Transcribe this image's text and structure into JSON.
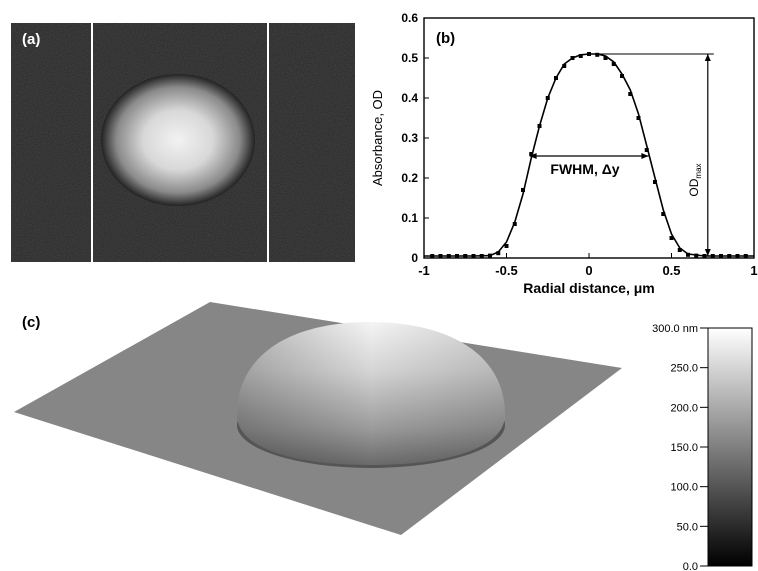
{
  "panels": {
    "a": {
      "label": "(a)"
    },
    "b": {
      "label": "(b)"
    },
    "c": {
      "label": "(c)"
    }
  },
  "chart_data": [
    {
      "type": "image",
      "panel": "(a)",
      "description_source": "grayscale micrograph, bright round spot between two vertical white lines"
    },
    {
      "type": "line",
      "panel": "(b)",
      "xlabel": "Radial distance, μm",
      "ylabel": "Absorbance, OD",
      "xlim": [
        -1,
        1
      ],
      "ylim": [
        0,
        0.6
      ],
      "xticks": [
        -1,
        -0.5,
        0,
        0.5,
        1
      ],
      "xtick_labels": [
        "-1",
        "-0.5",
        "0",
        "0.5",
        "1"
      ],
      "yticks": [
        0,
        0.1,
        0.2,
        0.3,
        0.4,
        0.5,
        0.6
      ],
      "ytick_labels": [
        "0",
        "0.1",
        "0.2",
        "0.3",
        "0.4",
        "0.5",
        "0.6"
      ],
      "grid": false,
      "series": [
        {
          "style": "solid-line",
          "x": [
            -1,
            -0.9,
            -0.8,
            -0.7,
            -0.6,
            -0.55,
            -0.5,
            -0.45,
            -0.4,
            -0.35,
            -0.3,
            -0.25,
            -0.2,
            -0.15,
            -0.1,
            -0.05,
            0,
            0.05,
            0.1,
            0.15,
            0.2,
            0.25,
            0.3,
            0.35,
            0.4,
            0.45,
            0.5,
            0.55,
            0.6,
            0.7,
            0.8,
            0.9,
            1
          ],
          "y": [
            0.005,
            0.005,
            0.005,
            0.005,
            0.006,
            0.015,
            0.04,
            0.09,
            0.16,
            0.25,
            0.33,
            0.4,
            0.45,
            0.485,
            0.5,
            0.508,
            0.51,
            0.51,
            0.505,
            0.49,
            0.46,
            0.42,
            0.36,
            0.28,
            0.2,
            0.12,
            0.06,
            0.025,
            0.01,
            0.005,
            0.005,
            0.005,
            0.005
          ]
        },
        {
          "style": "markers",
          "x": [
            -0.95,
            -0.9,
            -0.85,
            -0.8,
            -0.75,
            -0.7,
            -0.65,
            -0.6,
            -0.55,
            -0.5,
            -0.45,
            -0.4,
            -0.35,
            -0.3,
            -0.25,
            -0.2,
            -0.15,
            -0.1,
            -0.05,
            0,
            0.05,
            0.1,
            0.15,
            0.2,
            0.25,
            0.3,
            0.35,
            0.4,
            0.45,
            0.5,
            0.55,
            0.6,
            0.65,
            0.7,
            0.75,
            0.8,
            0.85,
            0.9,
            0.95
          ],
          "y": [
            0.005,
            0.005,
            0.005,
            0.005,
            0.005,
            0.005,
            0.005,
            0.006,
            0.012,
            0.03,
            0.085,
            0.17,
            0.26,
            0.33,
            0.4,
            0.45,
            0.48,
            0.5,
            0.505,
            0.51,
            0.508,
            0.5,
            0.485,
            0.455,
            0.41,
            0.35,
            0.27,
            0.19,
            0.11,
            0.05,
            0.02,
            0.008,
            0.006,
            0.005,
            0.005,
            0.005,
            0.005,
            0.005,
            0.005
          ]
        }
      ],
      "annotations": [
        {
          "text": "FWHM, Δy",
          "kind": "horizontal-arrow",
          "x_from": -0.36,
          "x_to": 0.36,
          "y": 0.255
        },
        {
          "text": "OD",
          "subscript": "max",
          "kind": "vertical-arrow",
          "x": 0.72,
          "y_from": 0.005,
          "y_to": 0.51
        }
      ]
    },
    {
      "type": "surface-3d",
      "panel": "(c)",
      "description_source": "3D rendered dome on flat plane with grayscale colour bar",
      "colorbar": {
        "min": 0,
        "max": 300,
        "tick_labels": [
          "300.0 nm",
          "250.0",
          "200.0",
          "150.0",
          "100.0",
          "50.0",
          "0.0"
        ],
        "tick_values": [
          300,
          250,
          200,
          150,
          100,
          50,
          0
        ]
      }
    }
  ]
}
